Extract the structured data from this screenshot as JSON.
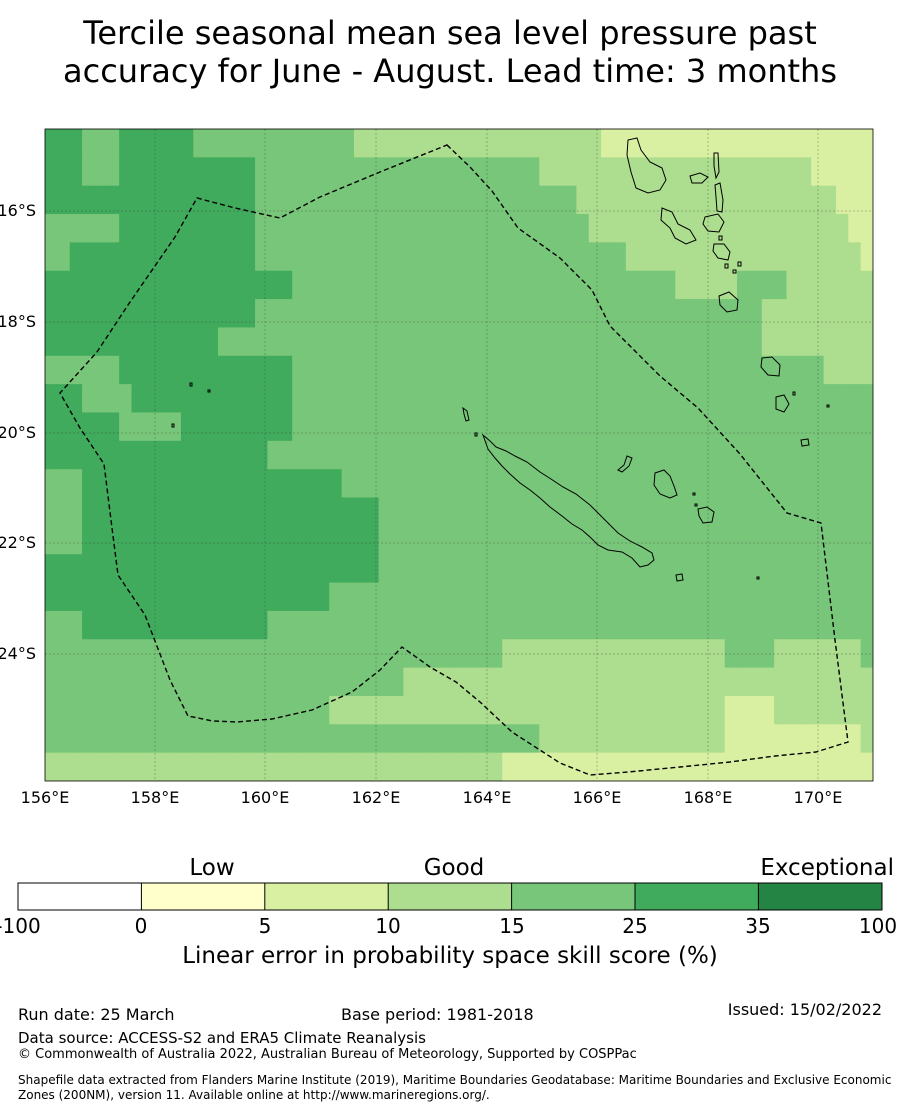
{
  "title_line1": "Tercile seasonal mean sea level pressure past",
  "title_line2": "accuracy for June - August. Lead time: 3 months",
  "lon_labels": [
    "156°E",
    "158°E",
    "160°E",
    "162°E",
    "164°E",
    "166°E",
    "168°E",
    "170°E"
  ],
  "lat_labels": [
    "16°S",
    "18°S",
    "20°S",
    "22°S",
    "24°S"
  ],
  "colors": {
    "c0": "#ffffcc",
    "c5": "#d9f0a3",
    "c10": "#addd8e",
    "c15": "#78c679",
    "c25": "#41ab5d",
    "c35": "#238443",
    "neg": "#ffffff"
  },
  "colorbar": {
    "words": {
      "low": "Low",
      "good": "Good",
      "exceptional": "Exceptional"
    },
    "ticks": [
      "-100",
      "0",
      "5",
      "10",
      "15",
      "25",
      "35",
      "100"
    ],
    "title": "Linear error in probability space skill score (%)"
  },
  "footer": {
    "run_date": "Run date: 25 March",
    "base_period": "Base period: 1981-2018",
    "issued": "Issued: 15/02/2022",
    "data_source": "Data source: ACCESS-S2 and ERA5 Climate Reanalysis",
    "copyright": "© Commonwealth of Australia 2022, Australian Bureau of Meteorology, Supported by COSPPac",
    "shapefile": "Shapefile data extracted from Flanders Marine Institute (2019), Maritime Boundaries Geodatabase: Maritime Boundaries and Exclusive Economic Zones (200NM), version 11. Available online at http://www.marineregions.org/."
  },
  "grid": {
    "legend_key": [
      "c0",
      "c5",
      "c10",
      "c15",
      "c25"
    ],
    "rows": [
      [
        4,
        4,
        4,
        3,
        3,
        3,
        4,
        4,
        4,
        4,
        4,
        4,
        3,
        3,
        3,
        3,
        3,
        3,
        3,
        3,
        3,
        3,
        3,
        3,
        3,
        2,
        2,
        2,
        2,
        2,
        2,
        2,
        2,
        2,
        2,
        2,
        2,
        2,
        2,
        2,
        2,
        2,
        2,
        2,
        2,
        1,
        1,
        1,
        1,
        1,
        1,
        1,
        1,
        1,
        1,
        1,
        1,
        1,
        1,
        1,
        1,
        1,
        1,
        1,
        1,
        1,
        1
      ],
      [
        4,
        4,
        4,
        3,
        3,
        3,
        4,
        4,
        4,
        4,
        4,
        4,
        4,
        4,
        4,
        4,
        4,
        3,
        3,
        3,
        3,
        3,
        3,
        3,
        3,
        3,
        3,
        3,
        3,
        3,
        3,
        3,
        3,
        3,
        3,
        3,
        3,
        3,
        3,
        3,
        2,
        2,
        2,
        2,
        2,
        2,
        2,
        2,
        2,
        2,
        2,
        2,
        2,
        2,
        2,
        2,
        2,
        2,
        2,
        2,
        2,
        2,
        1,
        1,
        1,
        1,
        1
      ],
      [
        4,
        4,
        4,
        4,
        4,
        4,
        4,
        4,
        4,
        4,
        4,
        4,
        4,
        4,
        4,
        4,
        4,
        3,
        3,
        3,
        3,
        3,
        3,
        3,
        3,
        3,
        3,
        3,
        3,
        3,
        3,
        3,
        3,
        3,
        3,
        3,
        3,
        3,
        3,
        3,
        3,
        3,
        3,
        2,
        2,
        2,
        2,
        2,
        2,
        2,
        2,
        2,
        2,
        2,
        2,
        2,
        2,
        2,
        2,
        2,
        2,
        2,
        2,
        2,
        1,
        1,
        1
      ],
      [
        3,
        3,
        3,
        3,
        3,
        3,
        4,
        4,
        4,
        4,
        4,
        4,
        4,
        4,
        4,
        4,
        4,
        3,
        3,
        3,
        3,
        3,
        3,
        3,
        3,
        3,
        3,
        3,
        3,
        3,
        3,
        3,
        3,
        3,
        3,
        3,
        3,
        3,
        3,
        3,
        3,
        3,
        3,
        3,
        2,
        2,
        2,
        2,
        2,
        2,
        2,
        2,
        2,
        2,
        2,
        2,
        2,
        2,
        2,
        2,
        2,
        2,
        2,
        2,
        2,
        1,
        1
      ],
      [
        3,
        3,
        4,
        4,
        4,
        4,
        4,
        4,
        4,
        4,
        4,
        4,
        4,
        4,
        4,
        4,
        4,
        3,
        3,
        3,
        3,
        3,
        3,
        3,
        3,
        3,
        3,
        3,
        3,
        3,
        3,
        3,
        3,
        3,
        3,
        3,
        3,
        3,
        3,
        3,
        3,
        3,
        3,
        3,
        3,
        3,
        3,
        2,
        2,
        2,
        2,
        2,
        2,
        2,
        2,
        2,
        2,
        2,
        2,
        2,
        2,
        2,
        2,
        2,
        2,
        2,
        1
      ],
      [
        4,
        4,
        4,
        4,
        4,
        4,
        4,
        4,
        4,
        4,
        4,
        4,
        4,
        4,
        4,
        4,
        4,
        4,
        4,
        4,
        3,
        3,
        3,
        3,
        3,
        3,
        3,
        3,
        3,
        3,
        3,
        3,
        3,
        3,
        3,
        3,
        3,
        3,
        3,
        3,
        3,
        3,
        3,
        3,
        3,
        3,
        3,
        3,
        3,
        3,
        3,
        2,
        2,
        2,
        2,
        2,
        3,
        3,
        3,
        3,
        2,
        2,
        2,
        2,
        2,
        2,
        2
      ],
      [
        4,
        4,
        4,
        4,
        4,
        4,
        4,
        4,
        4,
        4,
        4,
        4,
        4,
        4,
        4,
        4,
        4,
        3,
        3,
        3,
        3,
        3,
        3,
        3,
        3,
        3,
        3,
        3,
        3,
        3,
        3,
        3,
        3,
        3,
        3,
        3,
        3,
        3,
        3,
        3,
        3,
        3,
        3,
        3,
        3,
        3,
        3,
        3,
        3,
        3,
        3,
        3,
        3,
        3,
        3,
        3,
        3,
        3,
        2,
        2,
        2,
        2,
        2,
        2,
        2,
        2,
        2
      ],
      [
        4,
        4,
        4,
        4,
        4,
        4,
        4,
        4,
        4,
        4,
        4,
        4,
        4,
        4,
        3,
        3,
        3,
        3,
        3,
        3,
        3,
        3,
        3,
        3,
        3,
        3,
        3,
        3,
        3,
        3,
        3,
        3,
        3,
        3,
        3,
        3,
        3,
        3,
        3,
        3,
        3,
        3,
        3,
        3,
        3,
        3,
        3,
        3,
        3,
        3,
        3,
        3,
        3,
        3,
        3,
        3,
        3,
        3,
        2,
        2,
        2,
        2,
        2,
        2,
        2,
        2,
        2
      ],
      [
        3,
        3,
        3,
        3,
        3,
        3,
        4,
        4,
        4,
        4,
        4,
        4,
        4,
        4,
        4,
        4,
        4,
        4,
        4,
        4,
        3,
        3,
        3,
        3,
        3,
        3,
        3,
        3,
        3,
        3,
        3,
        3,
        3,
        3,
        3,
        3,
        3,
        3,
        3,
        3,
        3,
        3,
        3,
        3,
        3,
        3,
        3,
        3,
        3,
        3,
        3,
        3,
        3,
        3,
        3,
        3,
        3,
        3,
        3,
        3,
        3,
        3,
        3,
        2,
        2,
        2,
        2
      ],
      [
        4,
        4,
        4,
        3,
        3,
        3,
        3,
        4,
        4,
        4,
        4,
        4,
        4,
        4,
        4,
        4,
        4,
        4,
        4,
        4,
        3,
        3,
        3,
        3,
        3,
        3,
        3,
        3,
        3,
        3,
        3,
        3,
        3,
        3,
        3,
        3,
        3,
        3,
        3,
        3,
        3,
        3,
        3,
        3,
        3,
        3,
        3,
        3,
        3,
        3,
        3,
        3,
        3,
        3,
        3,
        3,
        3,
        3,
        3,
        3,
        3,
        3,
        3,
        3,
        3,
        3,
        3
      ],
      [
        4,
        4,
        4,
        4,
        4,
        4,
        3,
        3,
        3,
        3,
        3,
        4,
        4,
        4,
        4,
        4,
        4,
        4,
        4,
        4,
        3,
        3,
        3,
        3,
        3,
        3,
        3,
        3,
        3,
        3,
        3,
        3,
        3,
        3,
        3,
        3,
        3,
        3,
        3,
        3,
        3,
        3,
        3,
        3,
        3,
        3,
        3,
        3,
        3,
        3,
        3,
        3,
        3,
        3,
        3,
        3,
        3,
        3,
        3,
        3,
        3,
        3,
        3,
        3,
        3,
        3,
        3
      ],
      [
        4,
        4,
        4,
        4,
        4,
        4,
        4,
        4,
        4,
        4,
        4,
        4,
        4,
        4,
        4,
        4,
        4,
        4,
        3,
        3,
        3,
        3,
        3,
        3,
        3,
        3,
        3,
        3,
        3,
        3,
        3,
        3,
        3,
        3,
        3,
        3,
        3,
        3,
        3,
        3,
        3,
        3,
        3,
        3,
        3,
        3,
        3,
        3,
        3,
        3,
        3,
        3,
        3,
        3,
        3,
        3,
        3,
        3,
        3,
        3,
        3,
        3,
        3,
        3,
        3,
        3,
        3
      ],
      [
        3,
        3,
        3,
        4,
        4,
        4,
        4,
        4,
        4,
        4,
        4,
        4,
        4,
        4,
        4,
        4,
        4,
        4,
        4,
        4,
        4,
        4,
        4,
        4,
        3,
        3,
        3,
        3,
        3,
        3,
        3,
        3,
        3,
        3,
        3,
        3,
        3,
        3,
        3,
        3,
        3,
        3,
        3,
        3,
        3,
        3,
        3,
        3,
        3,
        3,
        3,
        3,
        3,
        3,
        3,
        3,
        3,
        3,
        3,
        3,
        3,
        3,
        3,
        3,
        3,
        3,
        3
      ],
      [
        3,
        3,
        3,
        4,
        4,
        4,
        4,
        4,
        4,
        4,
        4,
        4,
        4,
        4,
        4,
        4,
        4,
        4,
        4,
        4,
        4,
        4,
        4,
        4,
        4,
        4,
        4,
        3,
        3,
        3,
        3,
        3,
        3,
        3,
        3,
        3,
        3,
        3,
        3,
        3,
        3,
        3,
        3,
        3,
        3,
        3,
        3,
        3,
        3,
        3,
        3,
        3,
        3,
        3,
        3,
        3,
        3,
        3,
        3,
        3,
        3,
        3,
        3,
        3,
        3,
        3,
        3
      ],
      [
        3,
        3,
        3,
        4,
        4,
        4,
        4,
        4,
        4,
        4,
        4,
        4,
        4,
        4,
        4,
        4,
        4,
        4,
        4,
        4,
        4,
        4,
        4,
        4,
        4,
        4,
        4,
        3,
        3,
        3,
        3,
        3,
        3,
        3,
        3,
        3,
        3,
        3,
        3,
        3,
        3,
        3,
        3,
        3,
        3,
        3,
        3,
        3,
        3,
        3,
        3,
        3,
        3,
        3,
        3,
        3,
        3,
        3,
        3,
        3,
        3,
        3,
        3,
        3,
        3,
        3,
        3
      ],
      [
        4,
        4,
        4,
        4,
        4,
        4,
        4,
        4,
        4,
        4,
        4,
        4,
        4,
        4,
        4,
        4,
        4,
        4,
        4,
        4,
        4,
        4,
        4,
        4,
        4,
        4,
        4,
        3,
        3,
        3,
        3,
        3,
        3,
        3,
        3,
        3,
        3,
        3,
        3,
        3,
        3,
        3,
        3,
        3,
        3,
        3,
        3,
        3,
        3,
        3,
        3,
        3,
        3,
        3,
        3,
        3,
        3,
        3,
        3,
        3,
        3,
        3,
        3,
        3,
        3,
        3,
        3
      ],
      [
        4,
        4,
        4,
        4,
        4,
        4,
        4,
        4,
        4,
        4,
        4,
        4,
        4,
        4,
        4,
        4,
        4,
        4,
        4,
        4,
        4,
        4,
        4,
        3,
        3,
        3,
        3,
        3,
        3,
        3,
        3,
        3,
        3,
        3,
        3,
        3,
        3,
        3,
        3,
        3,
        3,
        3,
        3,
        3,
        3,
        3,
        3,
        3,
        3,
        3,
        3,
        3,
        3,
        3,
        3,
        3,
        3,
        3,
        3,
        3,
        3,
        3,
        3,
        3,
        3,
        3,
        3
      ],
      [
        3,
        3,
        3,
        4,
        4,
        4,
        4,
        4,
        4,
        4,
        4,
        4,
        4,
        4,
        4,
        4,
        4,
        4,
        3,
        3,
        3,
        3,
        3,
        3,
        3,
        3,
        3,
        3,
        3,
        3,
        3,
        3,
        3,
        3,
        3,
        3,
        3,
        3,
        3,
        3,
        3,
        3,
        3,
        3,
        3,
        3,
        3,
        3,
        3,
        3,
        3,
        3,
        3,
        3,
        3,
        3,
        3,
        3,
        3,
        3,
        3,
        3,
        3,
        3,
        3,
        3,
        3
      ],
      [
        3,
        3,
        3,
        3,
        3,
        3,
        3,
        3,
        3,
        3,
        3,
        3,
        3,
        3,
        3,
        3,
        3,
        3,
        3,
        3,
        3,
        3,
        3,
        3,
        3,
        3,
        3,
        3,
        3,
        3,
        3,
        3,
        3,
        3,
        3,
        3,
        3,
        2,
        2,
        2,
        2,
        2,
        2,
        2,
        2,
        2,
        2,
        2,
        2,
        2,
        2,
        2,
        2,
        2,
        2,
        3,
        3,
        3,
        3,
        2,
        2,
        2,
        2,
        2,
        2,
        2,
        3
      ],
      [
        3,
        3,
        3,
        3,
        3,
        3,
        3,
        3,
        3,
        3,
        3,
        3,
        3,
        3,
        3,
        3,
        3,
        3,
        3,
        3,
        3,
        3,
        3,
        3,
        3,
        3,
        3,
        3,
        3,
        2,
        2,
        2,
        2,
        2,
        2,
        2,
        2,
        2,
        2,
        2,
        2,
        2,
        2,
        2,
        2,
        2,
        2,
        2,
        2,
        2,
        2,
        2,
        2,
        2,
        2,
        2,
        2,
        2,
        2,
        2,
        2,
        2,
        2,
        2,
        2,
        2,
        2
      ],
      [
        3,
        3,
        3,
        3,
        3,
        3,
        3,
        3,
        3,
        3,
        3,
        3,
        3,
        3,
        3,
        3,
        3,
        3,
        3,
        3,
        3,
        3,
        3,
        2,
        2,
        2,
        2,
        2,
        2,
        2,
        2,
        2,
        2,
        2,
        2,
        2,
        2,
        2,
        2,
        2,
        2,
        2,
        2,
        2,
        2,
        2,
        2,
        2,
        2,
        2,
        2,
        2,
        2,
        2,
        2,
        1,
        1,
        1,
        1,
        2,
        2,
        2,
        2,
        2,
        2,
        2,
        2
      ],
      [
        3,
        3,
        3,
        3,
        3,
        3,
        3,
        3,
        3,
        3,
        3,
        3,
        3,
        3,
        3,
        3,
        3,
        3,
        3,
        3,
        3,
        3,
        3,
        3,
        3,
        3,
        3,
        3,
        3,
        3,
        3,
        3,
        3,
        3,
        3,
        3,
        3,
        3,
        3,
        3,
        2,
        2,
        2,
        2,
        2,
        2,
        2,
        2,
        2,
        2,
        2,
        2,
        2,
        2,
        2,
        1,
        1,
        1,
        1,
        1,
        1,
        1,
        1,
        1,
        1,
        1,
        2
      ],
      [
        2,
        2,
        2,
        2,
        2,
        2,
        2,
        2,
        2,
        2,
        2,
        2,
        2,
        2,
        2,
        2,
        2,
        2,
        2,
        2,
        2,
        2,
        2,
        2,
        2,
        2,
        2,
        2,
        2,
        2,
        2,
        2,
        2,
        2,
        2,
        2,
        2,
        1,
        1,
        1,
        1,
        1,
        1,
        1,
        1,
        1,
        1,
        1,
        1,
        1,
        1,
        1,
        1,
        1,
        1,
        1,
        1,
        1,
        1,
        1,
        1,
        1,
        1,
        1,
        1,
        1,
        1
      ]
    ]
  }
}
